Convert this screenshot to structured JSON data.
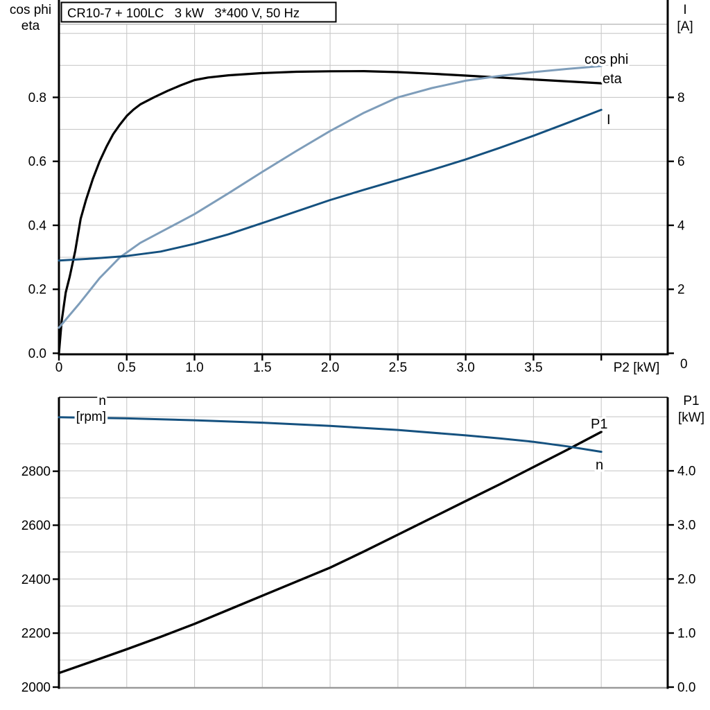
{
  "colors": {
    "curve_black": "#000000",
    "accent_light_blue": "#7E9DBA",
    "accent_dark_blue": "#15517F",
    "grid": "#C9C9C9",
    "frame_gray": "#999999"
  },
  "chart_data": [
    {
      "type": "line",
      "title": "CR10-7 + 100LC   3 kW   3*400 V, 50 Hz",
      "x_axis": {
        "label": "P2 [kW]",
        "min": 0,
        "max_visible": 4.49,
        "grid_step": 0.5,
        "ticks": [
          "0",
          "0.5",
          "1.0",
          "1.5",
          "2.0",
          "2.5",
          "3.0",
          "3.5",
          ""
        ],
        "tick_values": [
          0,
          0.5,
          1.0,
          1.5,
          2.0,
          2.5,
          3.0,
          3.5,
          4.0
        ]
      },
      "left_axis": {
        "title": [
          "cos phi",
          "eta"
        ],
        "range": [
          0,
          1.0285
        ],
        "grid_step": 0.1,
        "ticks": [
          "0.0",
          "0.2",
          "0.4",
          "0.6",
          "0.8"
        ],
        "tick_values": [
          0,
          0.2,
          0.4,
          0.6,
          0.8
        ]
      },
      "right_axis": {
        "title": [
          "I",
          "[A]"
        ],
        "range": [
          0,
          10.285
        ],
        "ticks": [
          "0",
          "2",
          "4",
          "6",
          "8"
        ],
        "tick_values": [
          0,
          2,
          4,
          6,
          8
        ],
        "bottom_corner_label": "0"
      },
      "series": [
        {
          "name": "eta",
          "label": "eta",
          "axis": "left",
          "color_key": "curve_black",
          "points": [
            [
              0,
              0
            ],
            [
              0.02,
              0.1
            ],
            [
              0.05,
              0.19
            ],
            [
              0.08,
              0.24
            ],
            [
              0.12,
              0.32
            ],
            [
              0.16,
              0.42
            ],
            [
              0.2,
              0.48
            ],
            [
              0.25,
              0.545
            ],
            [
              0.3,
              0.6
            ],
            [
              0.35,
              0.645
            ],
            [
              0.4,
              0.685
            ],
            [
              0.45,
              0.715
            ],
            [
              0.5,
              0.742
            ],
            [
              0.55,
              0.762
            ],
            [
              0.6,
              0.778
            ],
            [
              0.7,
              0.8
            ],
            [
              0.8,
              0.82
            ],
            [
              0.9,
              0.838
            ],
            [
              1.0,
              0.854
            ],
            [
              1.1,
              0.862
            ],
            [
              1.25,
              0.869
            ],
            [
              1.5,
              0.876
            ],
            [
              1.75,
              0.88
            ],
            [
              2.0,
              0.8815
            ],
            [
              2.25,
              0.882
            ],
            [
              2.5,
              0.879
            ],
            [
              2.75,
              0.874
            ],
            [
              3.0,
              0.868
            ],
            [
              3.25,
              0.862
            ],
            [
              3.5,
              0.856
            ],
            [
              3.75,
              0.85
            ],
            [
              4.0,
              0.844
            ]
          ]
        },
        {
          "name": "cos phi",
          "label": "cos phi",
          "axis": "left",
          "color_key": "accent_light_blue",
          "points": [
            [
              0,
              0.08
            ],
            [
              0.15,
              0.155
            ],
            [
              0.3,
              0.235
            ],
            [
              0.45,
              0.3
            ],
            [
              0.6,
              0.345
            ],
            [
              0.8,
              0.39
            ],
            [
              1.0,
              0.435
            ],
            [
              1.25,
              0.5
            ],
            [
              1.5,
              0.567
            ],
            [
              1.75,
              0.632
            ],
            [
              2.0,
              0.695
            ],
            [
              2.25,
              0.752
            ],
            [
              2.5,
              0.8
            ],
            [
              2.75,
              0.829
            ],
            [
              3.0,
              0.852
            ],
            [
              3.25,
              0.867
            ],
            [
              3.5,
              0.879
            ],
            [
              3.75,
              0.889
            ],
            [
              4.0,
              0.898
            ]
          ]
        },
        {
          "name": "I",
          "label": "I",
          "axis": "right",
          "color_key": "accent_dark_blue",
          "points": [
            [
              0,
              2.9
            ],
            [
              0.25,
              2.96
            ],
            [
              0.5,
              3.04
            ],
            [
              0.75,
              3.18
            ],
            [
              1.0,
              3.42
            ],
            [
              1.25,
              3.72
            ],
            [
              1.5,
              4.07
            ],
            [
              1.75,
              4.43
            ],
            [
              2.0,
              4.79
            ],
            [
              2.25,
              5.11
            ],
            [
              2.5,
              5.42
            ],
            [
              2.75,
              5.73
            ],
            [
              3.0,
              6.06
            ],
            [
              3.25,
              6.42
            ],
            [
              3.5,
              6.8
            ],
            [
              3.75,
              7.2
            ],
            [
              4.0,
              7.61
            ]
          ]
        }
      ]
    },
    {
      "type": "line",
      "x_axis": {
        "min": 0,
        "max_visible": 4.49,
        "grid_step": 0.5,
        "ticks": [],
        "tick_values": []
      },
      "left_axis": {
        "title": [
          "n",
          "[rpm]"
        ],
        "range": [
          2000,
          3074
        ],
        "ticks": [
          "2800",
          "2600",
          "2400",
          "2200",
          "2000"
        ],
        "tick_values": [
          2800,
          2600,
          2400,
          2200,
          2000
        ]
      },
      "right_axis": {
        "title": [
          "P1",
          "[kW]"
        ],
        "range": [
          0,
          5.36
        ],
        "grid_step": 0.5,
        "ticks": [
          "4.0",
          "3.0",
          "2.0",
          "1.0",
          "0.0"
        ],
        "tick_values": [
          4.0,
          3.0,
          2.0,
          1.0,
          0.0
        ]
      },
      "series": [
        {
          "name": "P1",
          "label": "P1",
          "axis": "right",
          "color_key": "curve_black",
          "points": [
            [
              0,
              0.26
            ],
            [
              0.25,
              0.48
            ],
            [
              0.5,
              0.7
            ],
            [
              0.75,
              0.93
            ],
            [
              1.0,
              1.17
            ],
            [
              1.25,
              1.43
            ],
            [
              1.5,
              1.69
            ],
            [
              1.75,
              1.95
            ],
            [
              2.0,
              2.21
            ],
            [
              2.25,
              2.51
            ],
            [
              2.5,
              2.82
            ],
            [
              2.75,
              3.13
            ],
            [
              3.0,
              3.44
            ],
            [
              3.25,
              3.75
            ],
            [
              3.5,
              4.07
            ],
            [
              3.75,
              4.39
            ],
            [
              4.0,
              4.72
            ]
          ]
        },
        {
          "name": "n",
          "label": "n",
          "axis": "left",
          "color_key": "accent_dark_blue",
          "points": [
            [
              0,
              3000
            ],
            [
              0.5,
              2996
            ],
            [
              1.0,
              2989
            ],
            [
              1.5,
              2980
            ],
            [
              2.0,
              2968
            ],
            [
              2.5,
              2953
            ],
            [
              3.0,
              2933
            ],
            [
              3.25,
              2922
            ],
            [
              3.5,
              2909
            ],
            [
              3.75,
              2892
            ],
            [
              4.0,
              2872
            ]
          ]
        }
      ]
    }
  ]
}
